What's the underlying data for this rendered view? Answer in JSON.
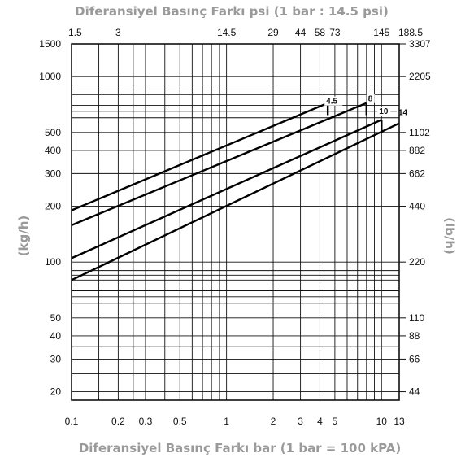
{
  "chart_data": {
    "type": "line",
    "title": "Diferansiyel Basınç Farkı psi  (1 bar : 14.5 psi)",
    "xlabel": "Diferansiyel Basınç Farkı bar  (1 bar = 100 kPA)",
    "ylabel_left": "(kg/h)",
    "ylabel_right": "(lb/h)",
    "x_scale": "log",
    "y_scale": "log",
    "xlim": [
      0.1,
      13
    ],
    "ylim": [
      18,
      1500
    ],
    "grid": true,
    "x_ticks_bottom": [
      {
        "label": "0.1",
        "value": 0.1
      },
      {
        "label": "0.2",
        "value": 0.2
      },
      {
        "label": "0.3",
        "value": 0.3
      },
      {
        "label": "0.5",
        "value": 0.5
      },
      {
        "label": "1",
        "value": 1
      },
      {
        "label": "2",
        "value": 2
      },
      {
        "label": "3",
        "value": 3
      },
      {
        "label": "4",
        "value": 4
      },
      {
        "label": "5",
        "value": 5
      },
      {
        "label": "10",
        "value": 10
      },
      {
        "label": "13",
        "value": 13
      }
    ],
    "x_ticks_top": [
      {
        "label": "1.5",
        "value": 0.1
      },
      {
        "label": "3",
        "value": 0.2
      },
      {
        "label": "14.5",
        "value": 1
      },
      {
        "label": "29",
        "value": 2
      },
      {
        "label": "44",
        "value": 3
      },
      {
        "label": "58",
        "value": 4
      },
      {
        "label": "73",
        "value": 5
      },
      {
        "label": "145",
        "value": 10
      },
      {
        "label": "188.5",
        "value": 13
      }
    ],
    "y_ticks_left": [
      {
        "label": "1500",
        "value": 1500
      },
      {
        "label": "1000",
        "value": 1000
      },
      {
        "label": "500",
        "value": 500
      },
      {
        "label": "400",
        "value": 400
      },
      {
        "label": "300",
        "value": 300
      },
      {
        "label": "200",
        "value": 200
      },
      {
        "label": "100",
        "value": 100
      },
      {
        "label": "50",
        "value": 50
      },
      {
        "label": "40",
        "value": 40
      },
      {
        "label": "30",
        "value": 30
      },
      {
        "label": "20",
        "value": 20
      }
    ],
    "y_ticks_right": [
      {
        "label": "3307",
        "value": 1500
      },
      {
        "label": "2205",
        "value": 1000
      },
      {
        "label": "1102",
        "value": 500
      },
      {
        "label": "882",
        "value": 400
      },
      {
        "label": "662",
        "value": 300
      },
      {
        "label": "440",
        "value": 200
      },
      {
        "label": "220",
        "value": 100
      },
      {
        "label": "110",
        "value": 50
      },
      {
        "label": "88",
        "value": 40
      },
      {
        "label": "66",
        "value": 30
      },
      {
        "label": "44",
        "value": 20
      }
    ],
    "x_grid": [
      0.1,
      0.15,
      0.2,
      0.25,
      0.3,
      0.4,
      0.5,
      0.6,
      0.7,
      0.8,
      0.9,
      1,
      2,
      3,
      4,
      5,
      6,
      7,
      8,
      9,
      10,
      13
    ],
    "y_grid": [
      20,
      25,
      30,
      35,
      40,
      50,
      60,
      65,
      70,
      80,
      85,
      90,
      100,
      200,
      300,
      400,
      500,
      600,
      650,
      700,
      800,
      900,
      1000,
      1500
    ],
    "series": [
      {
        "name": "4.5",
        "x": [
          0.1,
          4.5
        ],
        "y": [
          190,
          720
        ]
      },
      {
        "name": "8",
        "x": [
          0.1,
          8
        ],
        "y": [
          158,
          720
        ]
      },
      {
        "name": "10",
        "x": [
          0.1,
          10
        ],
        "y": [
          105,
          585
        ]
      },
      {
        "name": "14",
        "x": [
          0.1,
          13
        ],
        "y": [
          80,
          560
        ]
      }
    ],
    "series_end_drop": [
      {
        "name": "4.5",
        "x": 4.5,
        "y_top": 720,
        "y_bottom": 620
      },
      {
        "name": "8",
        "x": 8,
        "y_top": 720,
        "y_bottom": 620
      },
      {
        "name": "10",
        "x": 10,
        "y_top": 585,
        "y_bottom": 510
      }
    ]
  }
}
